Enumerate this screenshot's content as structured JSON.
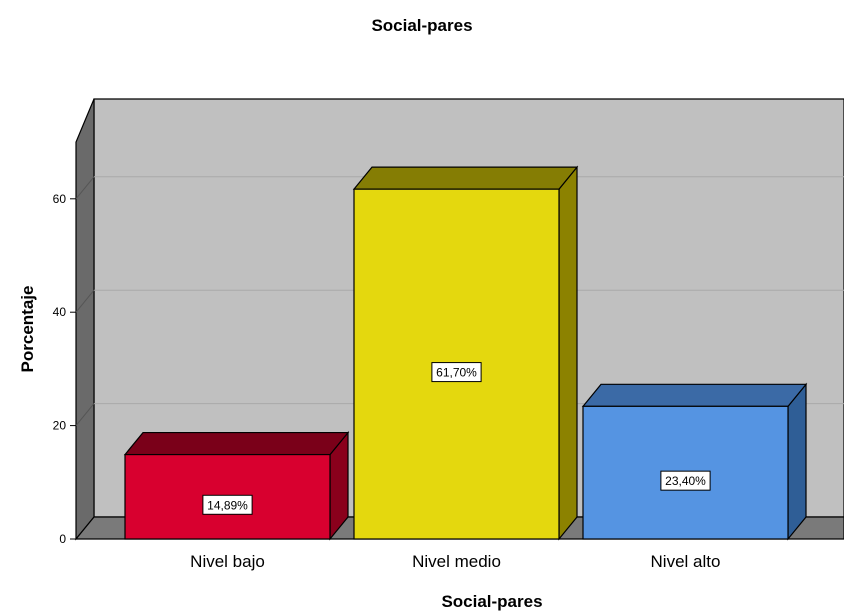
{
  "chart_data": {
    "type": "bar",
    "title": "Social-pares",
    "xlabel": "Social-pares",
    "ylabel": "Porcentaje",
    "categories": [
      "Nivel bajo",
      "Nivel medio",
      "Nivel alto"
    ],
    "values": [
      14.89,
      61.7,
      23.4
    ],
    "data_labels": [
      "14,89%",
      "61,70%",
      "23,40%"
    ],
    "bar_colors": [
      "#d8002f",
      "#e4d80e",
      "#5594e2"
    ],
    "bar_side_colors": [
      "#8a001c",
      "#8c8200",
      "#2f5e96"
    ],
    "bar_top_colors": [
      "#7a0019",
      "#857d04",
      "#3b6aa6"
    ],
    "ylim": [
      0,
      70
    ],
    "yticks": [
      0,
      20,
      40,
      60
    ],
    "grid": true,
    "style": "3d",
    "plot_background": "#c0c0c0",
    "wall_side_color": "#6a6a6a",
    "floor_color": "#7a7a7a"
  }
}
